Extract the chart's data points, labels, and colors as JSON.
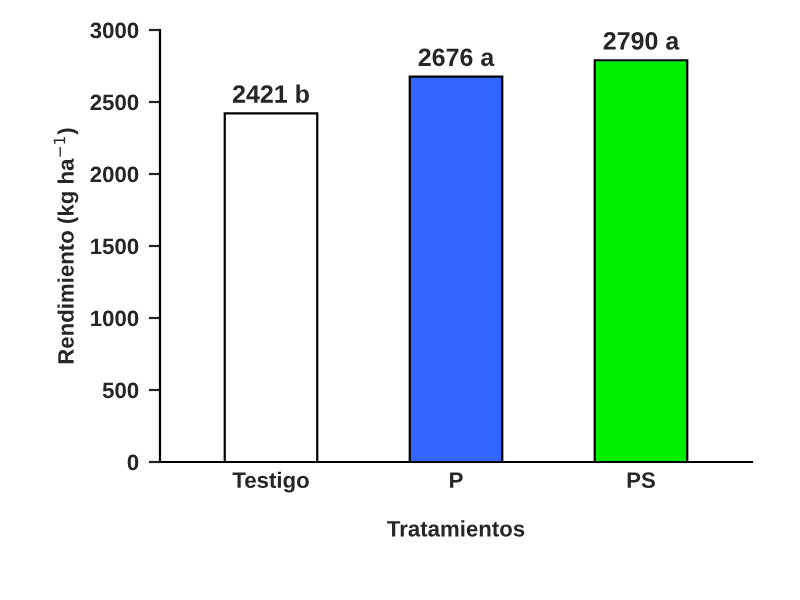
{
  "chart_data": {
    "type": "bar",
    "xlabel": "Tratamientos",
    "ylabel": "Rendimiento (kg ha$^{−1}$)",
    "categories": [
      "Testigo",
      "P",
      "PS"
    ],
    "values": [
      2421,
      2676,
      2790
    ],
    "colors": [
      "#ffffff",
      "#3366ff",
      "#00ee00"
    ],
    "value_labels": [
      "2421 b",
      "2676 a",
      "2790 a"
    ],
    "ylim": [
      0,
      3000
    ],
    "yticks": [
      0,
      500,
      1000,
      1500,
      2000,
      2500,
      3000
    ],
    "grid": false,
    "legend": false
  }
}
